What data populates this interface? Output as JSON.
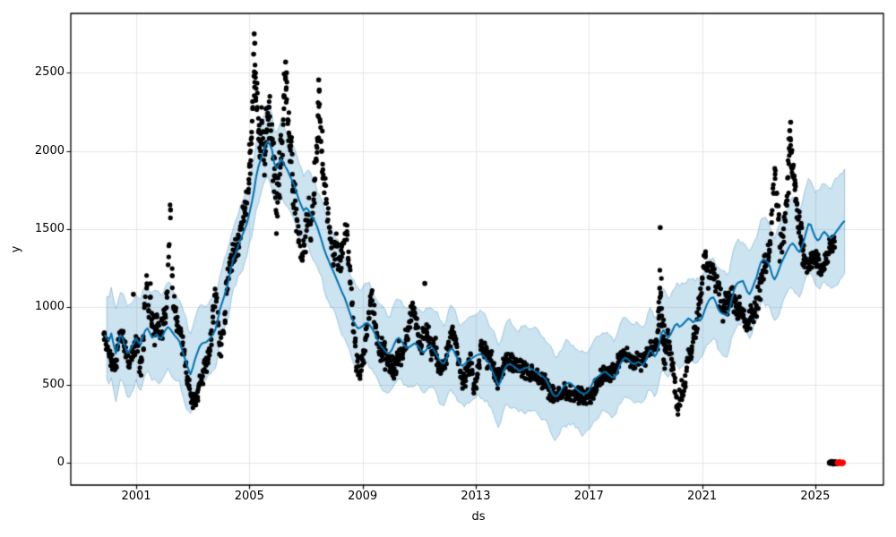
{
  "figure": {
    "background": "#ffffff"
  },
  "chart_data": {
    "type": "line",
    "title": "",
    "xlabel": "ds",
    "ylabel": "y",
    "xlim": [
      1998.688,
      2027.41
    ],
    "ylim": [
      -143,
      2881
    ],
    "xticks": [
      2001,
      2005,
      2009,
      2013,
      2017,
      2021,
      2025
    ],
    "yticks": [
      0,
      500,
      1000,
      1500,
      2000,
      2500
    ],
    "grid": true,
    "legend": "none",
    "colors": {
      "observations": "#000000",
      "forecast_line": "#0072B2",
      "uncertainty_fill": "rgba(0,114,178,0.2)",
      "uncertainty_edge": "rgba(0,114,178,0.3)",
      "anomaly": "#ff0000",
      "grid": "#e6e6e6",
      "spine": "#000000",
      "text": "#000000"
    },
    "forecast": {
      "start": 1999.88,
      "step": 0.08,
      "yhat": [
        820,
        800,
        782,
        830,
        760,
        700,
        755,
        820,
        800,
        748,
        705,
        718,
        742,
        765,
        798,
        772,
        757,
        812,
        848,
        862,
        833,
        802,
        810,
        824,
        806,
        795,
        824,
        853,
        870,
        858,
        836,
        816,
        800,
        781,
        737,
        692,
        647,
        602,
        567,
        610,
        664,
        704,
        744,
        764,
        770,
        774,
        789,
        804,
        824,
        854,
        914,
        984,
        1028,
        1073,
        1118,
        1184,
        1254,
        1309,
        1344,
        1389,
        1429,
        1464,
        1499,
        1539,
        1600,
        1664,
        1739,
        1834,
        1899,
        1944,
        1984,
        2034,
        2060,
        2041,
        2006,
        1921,
        1886,
        1919,
        1949,
        1926,
        1896,
        1871,
        1836,
        1806,
        1771,
        1726,
        1681,
        1646,
        1616,
        1634,
        1621,
        1596,
        1571,
        1546,
        1511,
        1466,
        1421,
        1371,
        1331,
        1296,
        1261,
        1231,
        1196,
        1161,
        1126,
        1091,
        1061,
        1021,
        976,
        936,
        906,
        881,
        861,
        866,
        876,
        891,
        896,
        886,
        866,
        841,
        811,
        776,
        751,
        736,
        716,
        701,
        706,
        726,
        761,
        791,
        801,
        786,
        761,
        741,
        736,
        746,
        756,
        766,
        756,
        741,
        716,
        706,
        721,
        741,
        751,
        736,
        711,
        686,
        661,
        641,
        636,
        666,
        711,
        731,
        726,
        696,
        666,
        636,
        621,
        631,
        646,
        656,
        666,
        676,
        686,
        693,
        696,
        691,
        676,
        656,
        631,
        601,
        566,
        531,
        496,
        521,
        576,
        611,
        626,
        633,
        626,
        616,
        606,
        589,
        593,
        601,
        608,
        611,
        606,
        599,
        591,
        581,
        569,
        559,
        549,
        533,
        506,
        471,
        441,
        426,
        429,
        449,
        471,
        493,
        506,
        513,
        509,
        496,
        481,
        466,
        453,
        446,
        443,
        449,
        463,
        491,
        521,
        541,
        553,
        563,
        576,
        584,
        576,
        563,
        551,
        546,
        561,
        601,
        636,
        661,
        673,
        666,
        653,
        639,
        633,
        639,
        646,
        636,
        626,
        651,
        691,
        721,
        711,
        681,
        701,
        761,
        831,
        851,
        821,
        801,
        821,
        851,
        881,
        891,
        871,
        881,
        896,
        911,
        926,
        916,
        901,
        911,
        921,
        911,
        931,
        971,
        1011,
        1041,
        1056,
        1061,
        1031,
        991,
        966,
        956,
        951,
        946,
        976,
        1041,
        1101,
        1141,
        1156,
        1161,
        1166,
        1131,
        1096,
        1081,
        1111,
        1151,
        1186,
        1241,
        1286,
        1301,
        1296,
        1286,
        1256,
        1201,
        1176,
        1201,
        1241,
        1281,
        1311,
        1341,
        1371,
        1396,
        1406,
        1391,
        1366,
        1351,
        1381,
        1426,
        1481,
        1531,
        1526,
        1481,
        1446,
        1426,
        1436,
        1466,
        1481,
        1466,
        1446,
        1441,
        1456,
        1476,
        1496,
        1516,
        1536,
        1551
      ]
    },
    "uncertainty": {
      "halfwidth_anchors": [
        [
          1999.9,
          285
        ],
        [
          2001,
          288
        ],
        [
          2002.3,
          280
        ],
        [
          2003,
          265
        ],
        [
          2003.8,
          230
        ],
        [
          2004.6,
          205
        ],
        [
          2005.3,
          215
        ],
        [
          2006,
          235
        ],
        [
          2007,
          245
        ],
        [
          2008,
          255
        ],
        [
          2009,
          255
        ],
        [
          2010,
          252
        ],
        [
          2011,
          258
        ],
        [
          2012,
          262
        ],
        [
          2013,
          268
        ],
        [
          2014,
          268
        ],
        [
          2015,
          268
        ],
        [
          2016,
          262
        ],
        [
          2017,
          258
        ],
        [
          2018,
          252
        ],
        [
          2019,
          250
        ],
        [
          2020,
          255
        ],
        [
          2021,
          260
        ],
        [
          2022,
          265
        ],
        [
          2023,
          268
        ],
        [
          2024,
          275
        ],
        [
          2024.6,
          290
        ],
        [
          2025.1,
          310
        ],
        [
          2025.6,
          330
        ],
        [
          2026.04,
          345
        ]
      ],
      "edge_jitter": 14,
      "edge_wave": 12
    },
    "observations": {
      "point_radius": 2.6,
      "segments": [
        {
          "start": 1999.87,
          "step": 0.06,
          "amp": 55,
          "v": [
            790,
            760,
            745,
            710,
            665,
            645,
            635,
            660,
            745,
            835,
            845,
            790,
            740,
            690,
            650,
            635,
            675,
            715,
            745,
            785,
            750
          ]
        },
        {
          "start": 2001.13,
          "step": 0.06,
          "amp": 90,
          "v": [
            610,
            650,
            810,
            1010,
            1120,
            1010,
            1060,
            960,
            870,
            820,
            880,
            840,
            800,
            840,
            890,
            950,
            1060,
            1320,
            1570,
            1200,
            1000
          ]
        },
        {
          "start": 2002.39,
          "step": 0.06,
          "amp": 60,
          "v": [
            975,
            905,
            835,
            840,
            755,
            695,
            625,
            550,
            495,
            445,
            405,
            440,
            430,
            455,
            505,
            510,
            555,
            600,
            625,
            655,
            690
          ]
        },
        {
          "start": 2003.65,
          "step": 0.06,
          "amp": 80,
          "v": [
            790,
            935,
            1075,
            1035,
            895,
            755,
            760,
            845,
            955,
            1085,
            1185,
            1270,
            1275,
            1330,
            1355,
            1385,
            1405,
            1440,
            1500,
            1575,
            1635,
            1665,
            1755
          ]
        },
        {
          "start": 2005.0,
          "step": 0.04,
          "amp": 160,
          "v": [
            1900,
            2000,
            2120,
            2280,
            2480,
            2550,
            2400,
            2280,
            2120,
            2020,
            2110,
            2180,
            2080,
            1990,
            2030,
            2120,
            2220,
            2280,
            2220,
            2130,
            2040,
            1950,
            1840,
            1700,
            1600,
            1670,
            1780,
            1850,
            1950,
            2060,
            2200,
            2350,
            2470,
            2330,
            2200,
            2110,
            2020,
            1930,
            1850,
            1780
          ]
        },
        {
          "start": 2006.62,
          "step": 0.06,
          "amp": 110,
          "v": [
            1680,
            1560,
            1470,
            1390,
            1300,
            1350,
            1450,
            1555,
            1590,
            1530,
            1600,
            1720
          ]
        },
        {
          "start": 2007.32,
          "step": 0.04,
          "amp": 150,
          "v": [
            1820,
            1950,
            2080,
            2220,
            2300,
            2150,
            2000,
            1880
          ]
        },
        {
          "start": 2007.66,
          "step": 0.06,
          "amp": 100,
          "v": [
            1780,
            1690,
            1600,
            1510,
            1420,
            1330,
            1390,
            1400,
            1310,
            1320,
            1320,
            1410,
            1470,
            1430,
            1300,
            1160,
            1020,
            890,
            780,
            690,
            620,
            585,
            625
          ]
        },
        {
          "start": 2009.04,
          "step": 0.06,
          "amp": 75,
          "v": [
            700,
            790,
            885,
            965,
            1030,
            1040,
            960,
            880,
            815,
            765,
            705,
            730,
            710,
            665,
            630,
            625,
            655
          ]
        },
        {
          "start": 2010.06,
          "step": 0.06,
          "amp": 70,
          "v": [
            630,
            605,
            635,
            690,
            725,
            695,
            670,
            725,
            790,
            850,
            905,
            955,
            985,
            940,
            885,
            825
          ]
        },
        {
          "start": 2011.02,
          "step": 0.06,
          "amp": 70,
          "v": [
            775,
            755,
            800,
            855,
            855,
            805,
            755,
            715,
            750,
            735,
            690,
            645,
            620,
            650,
            625,
            640
          ]
        },
        {
          "start": 2011.98,
          "step": 0.06,
          "amp": 65,
          "v": [
            690,
            745,
            805,
            855,
            825,
            765,
            705,
            645,
            590,
            540,
            520,
            550,
            590,
            625,
            640,
            575,
            490
          ]
        },
        {
          "start": 2013.0,
          "step": 0.06,
          "amp": 60,
          "v": [
            485,
            565,
            655,
            725,
            735,
            710,
            685,
            660,
            680,
            655,
            625,
            595,
            565,
            535,
            550,
            580,
            615
          ]
        },
        {
          "start": 2014.02,
          "step": 0.06,
          "amp": 55,
          "v": [
            645,
            670,
            660,
            650,
            645,
            640,
            630,
            620,
            612,
            618,
            605,
            598,
            592,
            588,
            578,
            568,
            580
          ]
        },
        {
          "start": 2015.04,
          "step": 0.06,
          "amp": 55,
          "v": [
            572,
            560,
            552,
            545,
            538,
            532,
            525,
            518,
            498,
            468,
            438,
            455,
            440,
            425,
            445,
            438
          ]
        },
        {
          "start": 2016.0,
          "step": 0.06,
          "amp": 50,
          "v": [
            460,
            448,
            460,
            445,
            455,
            442,
            450,
            438,
            445,
            430,
            438,
            425,
            432,
            418,
            412,
            425,
            440
          ]
        },
        {
          "start": 2017.02,
          "step": 0.06,
          "amp": 50,
          "v": [
            418,
            432,
            455,
            478,
            500,
            522,
            540,
            556,
            570,
            582,
            572,
            585,
            570,
            578,
            592,
            608
          ]
        },
        {
          "start": 2017.98,
          "step": 0.06,
          "amp": 50,
          "v": [
            625,
            645,
            662,
            678,
            690,
            700,
            688,
            672,
            658,
            645,
            635,
            648,
            660,
            648,
            638,
            650,
            662
          ]
        },
        {
          "start": 2019.0,
          "step": 0.06,
          "amp": 55,
          "v": [
            672,
            690,
            710,
            728,
            740,
            728,
            745,
            770
          ]
        },
        {
          "start": 2019.45,
          "step": 0.03,
          "amp": 140,
          "v": [
            850,
            990,
            1120,
            1090,
            990,
            890,
            810,
            760,
            720
          ]
        },
        {
          "start": 2019.74,
          "step": 0.06,
          "amp": 80,
          "v": [
            745,
            775,
            730,
            665,
            600,
            520,
            420,
            370,
            405,
            450,
            500,
            560
          ]
        },
        {
          "start": 2020.46,
          "step": 0.06,
          "amp": 85,
          "v": [
            610,
            655,
            700,
            745,
            800,
            860,
            920,
            990,
            1070
          ]
        },
        {
          "start": 2021.0,
          "step": 0.06,
          "amp": 85,
          "v": [
            1150,
            1260,
            1320,
            1250,
            1190,
            1225,
            1240,
            1180,
            1130,
            1125,
            1080,
            1035,
            990,
            1010,
            1025,
            990,
            1015
          ]
        },
        {
          "start": 2022.02,
          "step": 0.06,
          "amp": 75,
          "v": [
            1045,
            1065,
            1035,
            1000,
            980,
            995,
            960,
            935,
            905,
            865,
            895,
            910,
            935,
            955,
            975,
            1010,
            1055
          ]
        },
        {
          "start": 2023.04,
          "step": 0.06,
          "amp": 90,
          "v": [
            1105,
            1160,
            1225,
            1255,
            1285,
            1330,
            1420,
            1540,
            1730,
            1850,
            1730,
            1560,
            1380,
            1400,
            1500,
            1600
          ]
        },
        {
          "start": 2024.0,
          "step": 0.04,
          "amp": 110,
          "v": [
            1710,
            1830,
            1970,
            2080,
            1990,
            1900,
            1830,
            1750,
            1680,
            1620,
            1560,
            1500,
            1450,
            1400,
            1360,
            1330
          ]
        },
        {
          "start": 2024.66,
          "step": 0.06,
          "amp": 70,
          "v": [
            1310,
            1290,
            1280,
            1310,
            1290,
            1305,
            1290,
            1270,
            1255,
            1230,
            1250,
            1280,
            1310,
            1345,
            1380,
            1415,
            1390,
            1420
          ]
        }
      ]
    },
    "outliers": [
      [
        2000.9,
        1080
      ],
      [
        2005.15,
        2620
      ],
      [
        2005.17,
        2750
      ],
      [
        2005.19,
        2690
      ],
      [
        2006.28,
        2570
      ],
      [
        2006.31,
        2500
      ],
      [
        2007.45,
        2455
      ],
      [
        2007.47,
        2390
      ],
      [
        2011.2,
        1150
      ],
      [
        2019.52,
        1508
      ],
      [
        2024.1,
        2130
      ],
      [
        2024.13,
        2184
      ]
    ],
    "zero_cluster": {
      "radius": 3.5,
      "black": [
        [
          2025.52,
          0
        ],
        [
          2025.58,
          5
        ],
        [
          2025.64,
          -4
        ],
        [
          2025.7,
          3
        ],
        [
          2025.76,
          -2
        ]
      ],
      "red": [
        [
          2025.8,
          0
        ],
        [
          2025.86,
          4
        ],
        [
          2025.92,
          -3
        ],
        [
          2025.97,
          1
        ]
      ]
    }
  }
}
